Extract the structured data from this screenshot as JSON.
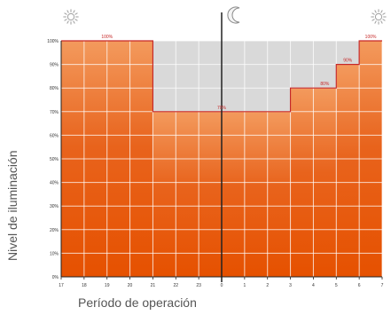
{
  "chart_data": {
    "type": "area",
    "xlabel": "Período de operación",
    "ylabel": "Nivel de iluminación",
    "x_ticks": [
      "17",
      "18",
      "19",
      "20",
      "21",
      "22",
      "23",
      "0",
      "1",
      "2",
      "3",
      "4",
      "5",
      "6",
      "7"
    ],
    "y_ticks": [
      "0%",
      "10%",
      "20%",
      "30%",
      "40%",
      "50%",
      "60%",
      "70%",
      "80%",
      "90%",
      "100%"
    ],
    "ylim": [
      0,
      100
    ],
    "grid": true,
    "segments": [
      {
        "start": "17",
        "end": "21",
        "value": 100,
        "label": "100%"
      },
      {
        "start": "21",
        "end": "3",
        "value": 70,
        "label": "70%"
      },
      {
        "start": "3",
        "end": "4",
        "value": 80,
        "label": ""
      },
      {
        "start": "4",
        "end": "5",
        "value": 80,
        "label": "80%"
      },
      {
        "start": "5",
        "end": "6",
        "value": 90,
        "label": "90%"
      },
      {
        "start": "6",
        "end": "7",
        "value": 100,
        "label": "100%"
      }
    ],
    "icons": [
      {
        "name": "sun-icon",
        "at": "17"
      },
      {
        "name": "moon-icon",
        "at": "0"
      },
      {
        "name": "sun-icon",
        "at": "7"
      }
    ],
    "colors": {
      "fill_top": "#f39a5d",
      "fill_bottom": "#e65100",
      "background_band": "#d9d9d9",
      "step_line": "#c62828",
      "grid": "#ffffff",
      "midnight_line": "#222222"
    }
  }
}
